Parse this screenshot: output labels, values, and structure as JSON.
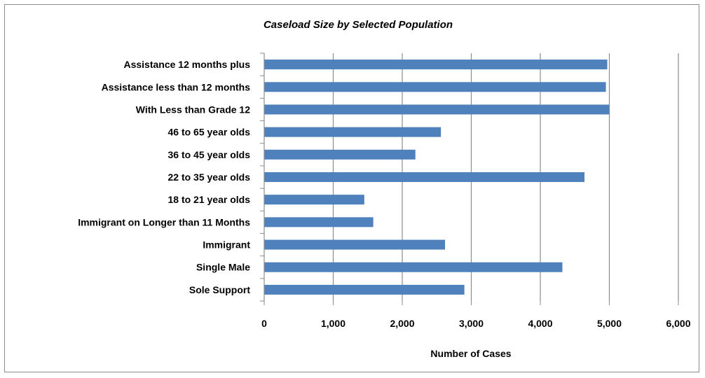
{
  "chart_data": {
    "type": "bar",
    "orientation": "horizontal",
    "title": "Caseload Size by Selected Population",
    "xlabel": "Number of Cases",
    "ylabel": "",
    "categories": [
      "Assistance 12 months plus",
      "Assistance less than 12 months",
      "With Less than Grade 12",
      "46 to 65 year olds",
      "36 to 45 year olds",
      "22 to 35 year olds",
      "18 to 21 year olds",
      "Immigrant on Longer than 11 Months",
      "Immigrant",
      "Single Male",
      "Sole Support"
    ],
    "values": [
      4970,
      4950,
      5000,
      2560,
      2190,
      4640,
      1450,
      1580,
      2620,
      4320,
      2900
    ],
    "xlim": [
      0,
      6000
    ],
    "xticks": [
      0,
      1000,
      2000,
      3000,
      4000,
      5000,
      6000
    ],
    "xtick_labels": [
      "0",
      "1,000",
      "2,000",
      "3,000",
      "4,000",
      "5,000",
      "6,000"
    ],
    "grid": "vertical",
    "legend": "none",
    "bar_color": "#4f81bd"
  }
}
